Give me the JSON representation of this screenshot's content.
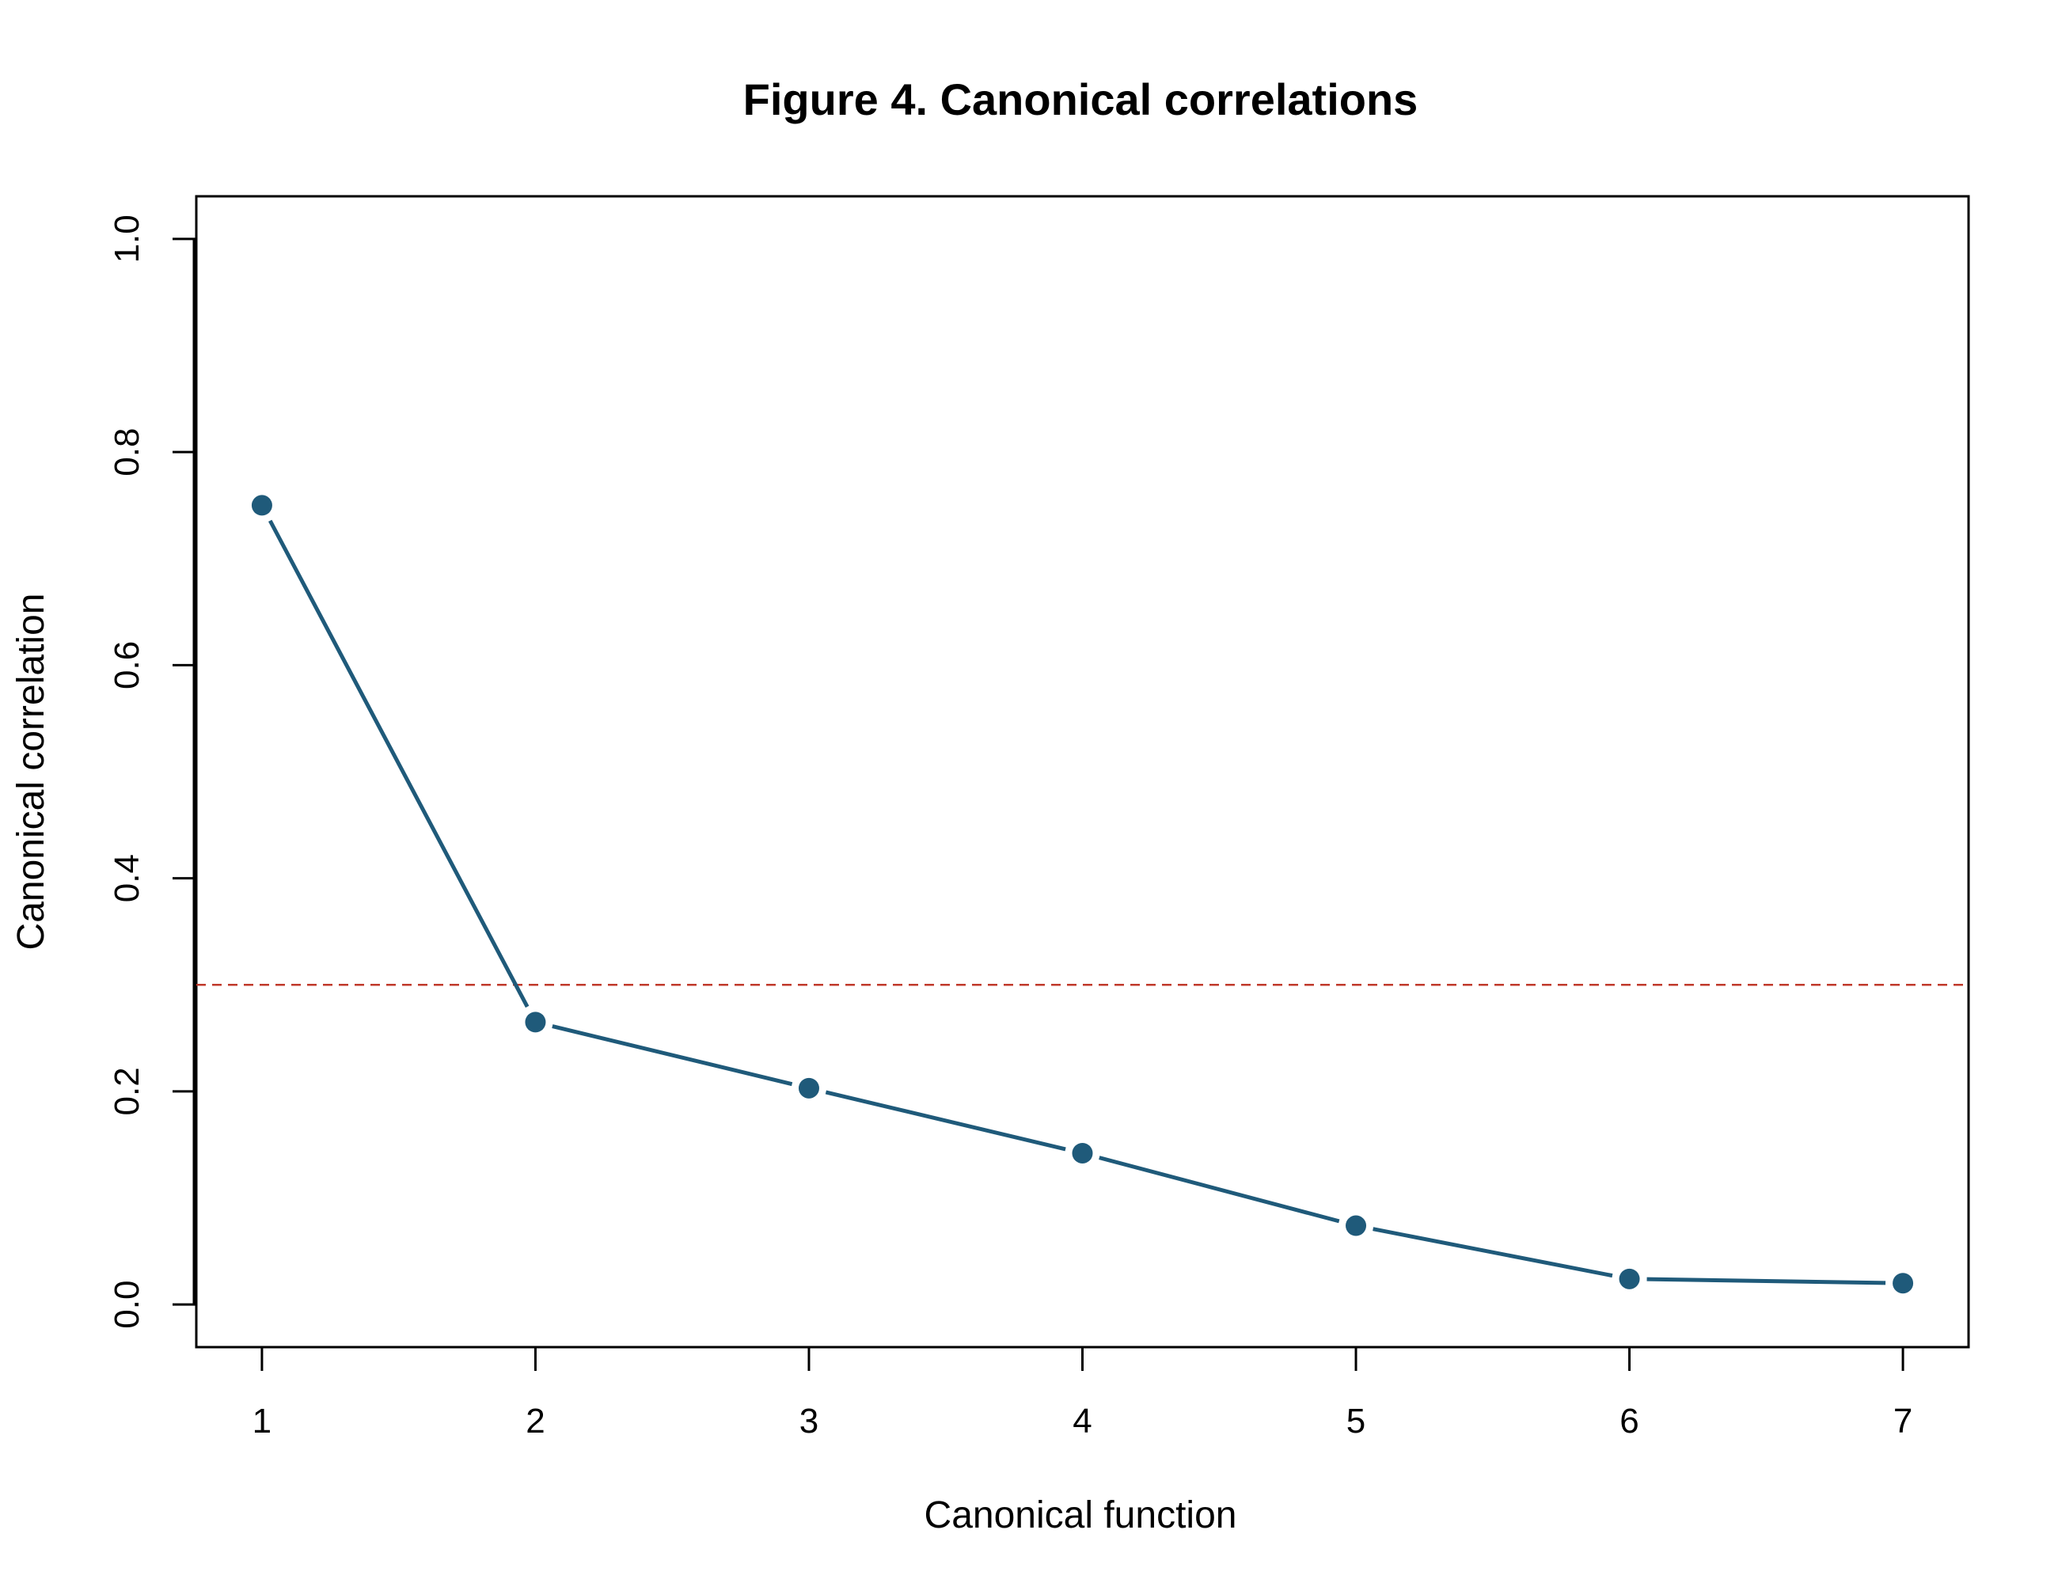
{
  "chart_data": {
    "type": "line",
    "title": "Figure 4. Canonical correlations",
    "xlabel": "Canonical function",
    "ylabel": "Canonical correlation",
    "x": [
      1,
      2,
      3,
      4,
      5,
      6,
      7
    ],
    "series": [
      {
        "values": [
          0.75,
          0.265,
          0.203,
          0.142,
          0.074,
          0.024,
          0.02
        ]
      }
    ],
    "reference_line": {
      "y": 0.3,
      "style": "dashed"
    },
    "xlim": [
      0.76,
      7.24
    ],
    "ylim": [
      -0.04,
      1.04
    ],
    "x_ticks": [
      "1",
      "2",
      "3",
      "4",
      "5",
      "6",
      "7"
    ],
    "y_ticks": [
      "0.0",
      "0.2",
      "0.4",
      "0.6",
      "0.8",
      "1.0"
    ],
    "grid": false,
    "colors": {
      "series": "#1f5a7a",
      "reference_line": "#c0392b",
      "axis": "#000000"
    }
  }
}
